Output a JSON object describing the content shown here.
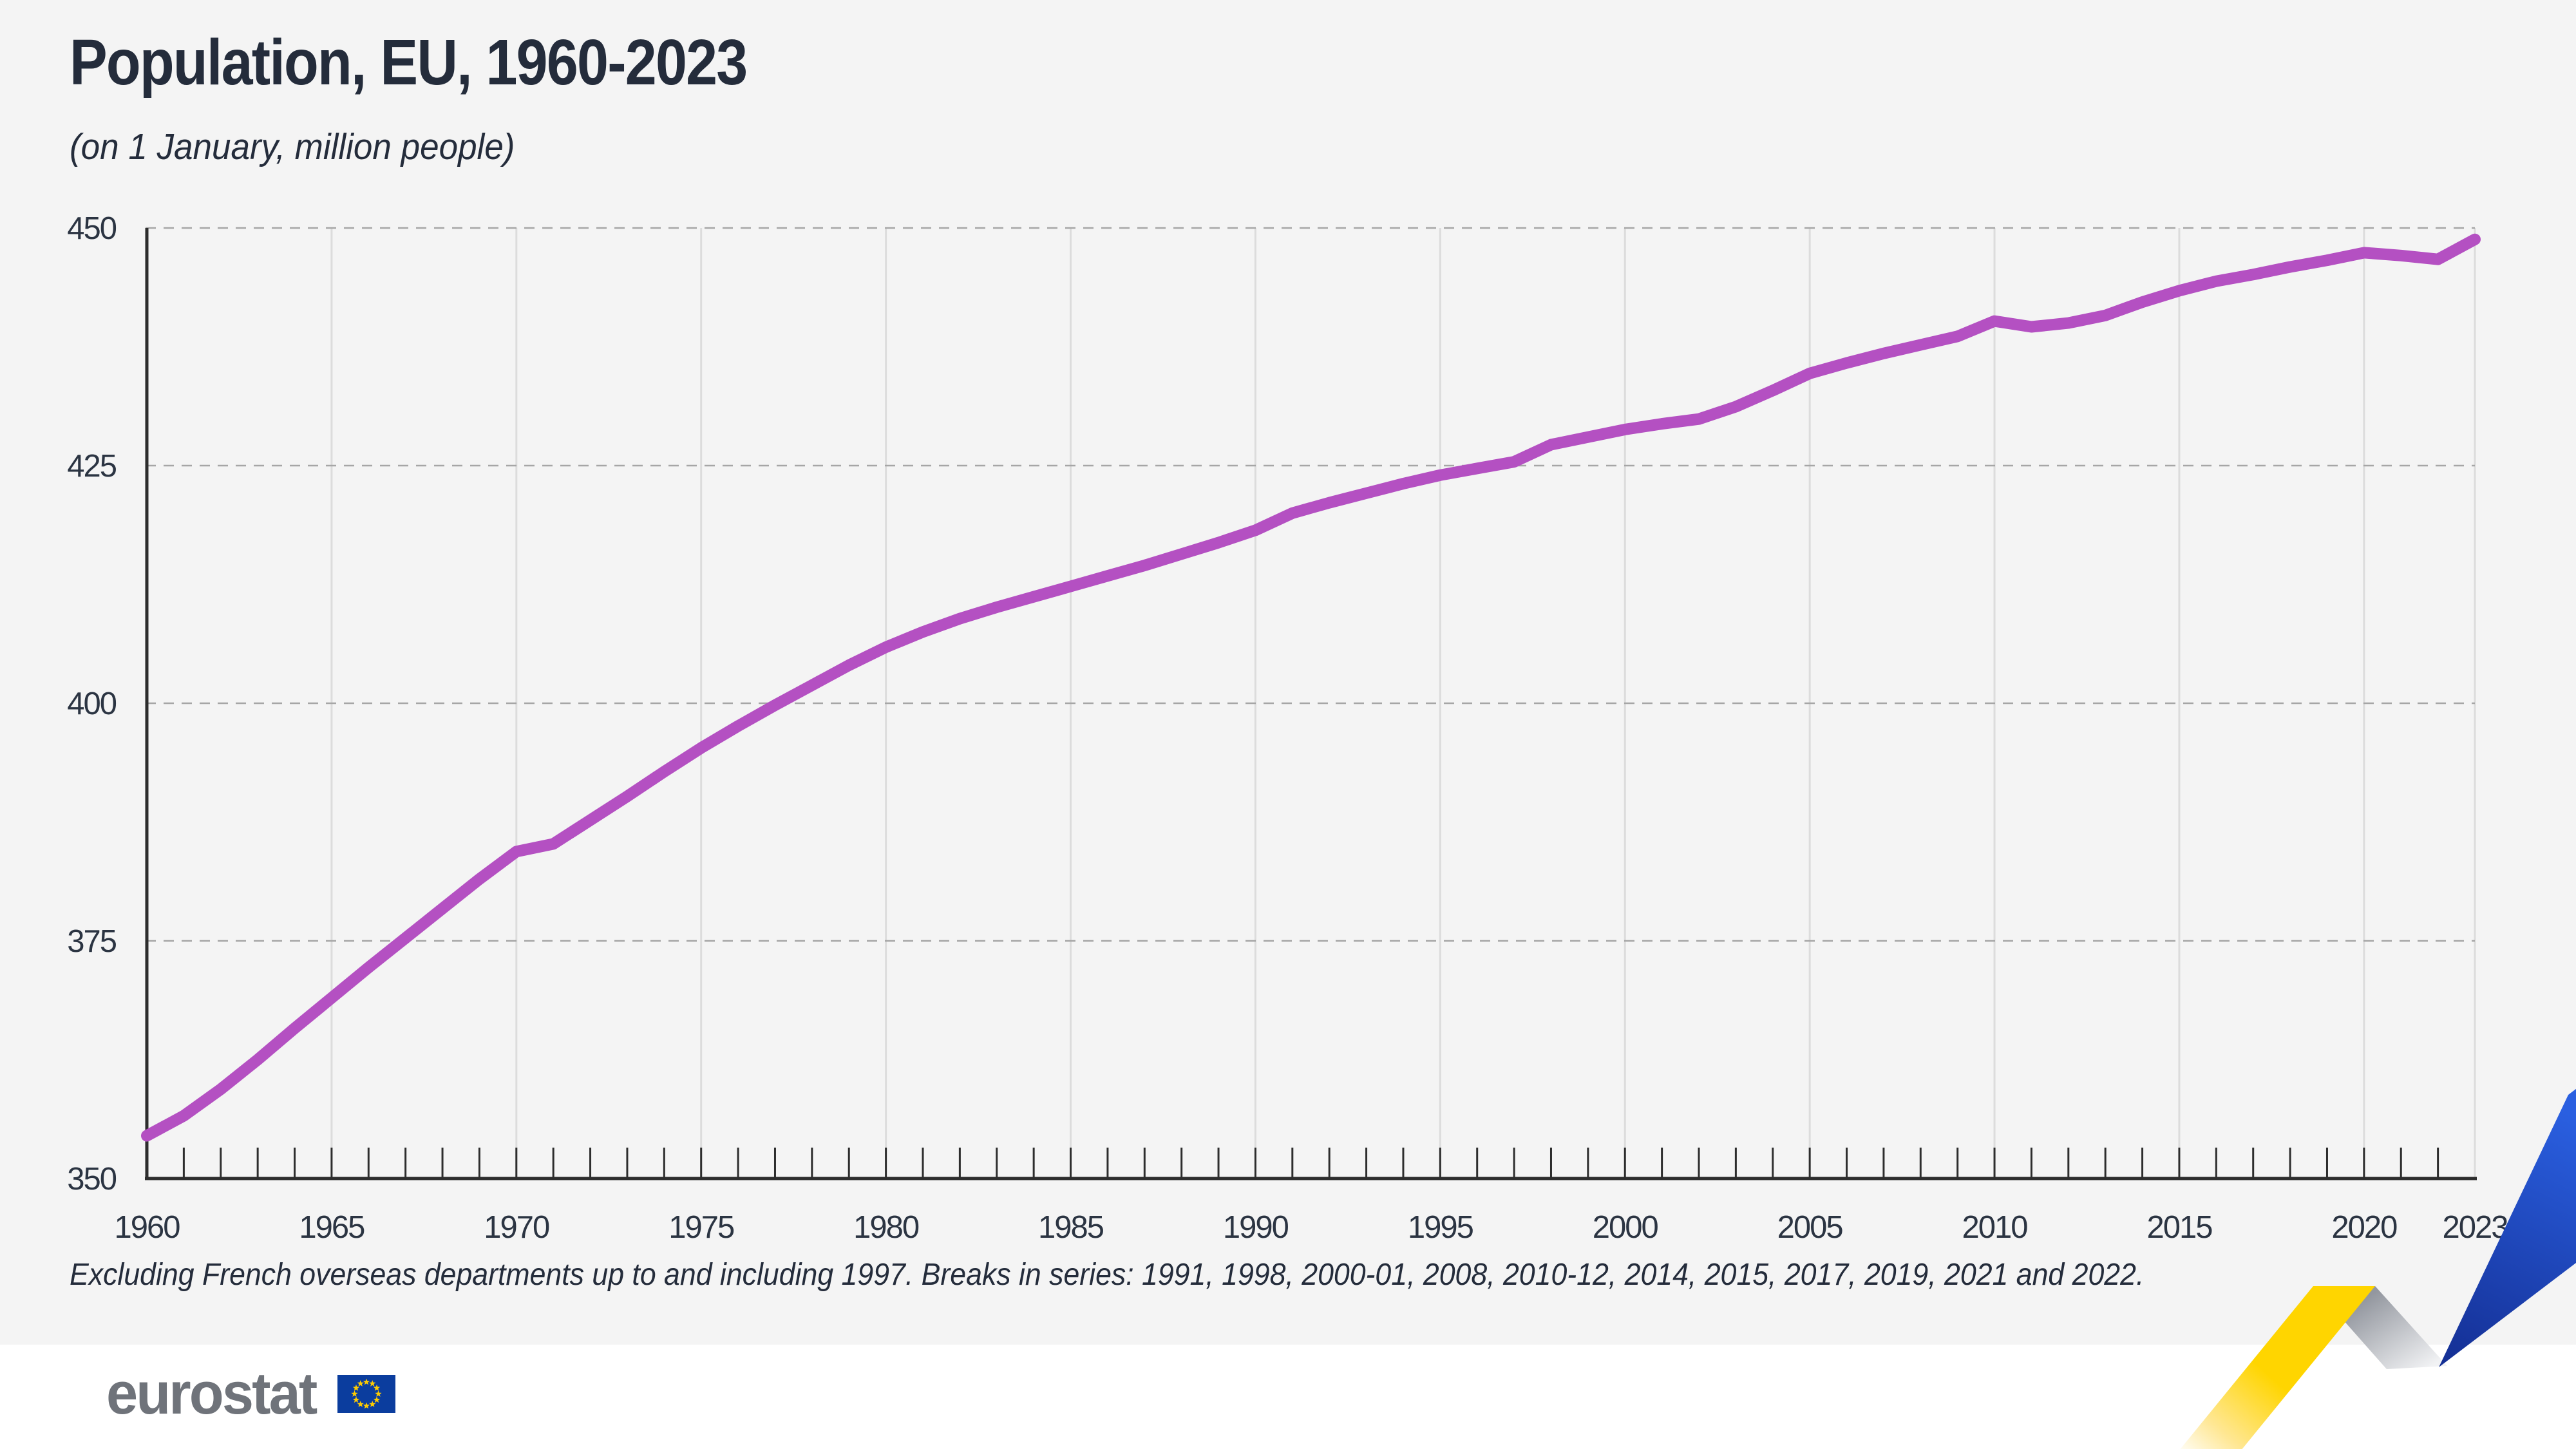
{
  "header": {
    "title": "Population, EU, 1960-2023",
    "subtitle": "(on 1 January, million people)"
  },
  "chart_data": {
    "type": "line",
    "title": "Population, EU, 1960-2023",
    "subtitle": "(on 1 January, million people)",
    "unit": "million people",
    "xlabel": "",
    "ylabel": "",
    "ylim": [
      350,
      450
    ],
    "y_ticks": [
      350,
      375,
      400,
      425,
      450
    ],
    "x_range": [
      1960,
      2023
    ],
    "x_tick_labels": [
      "1960",
      "1965",
      "1970",
      "1975",
      "1980",
      "1985",
      "1990",
      "1995",
      "2000",
      "2005",
      "2010",
      "2015",
      "2020",
      "2023"
    ],
    "vertical_gridline_years": [
      1965,
      1970,
      1975,
      1980,
      1985,
      1990,
      1995,
      2000,
      2005,
      2010,
      2015,
      2020,
      2023
    ],
    "grid": "horizontal dashed gray lines at 375/400/425/450; light vertical solid lines at labeled years; small year tick marks on baseline",
    "legend": "none",
    "line_color": "#b450c2",
    "series": [
      {
        "name": "EU population on 1 January (million)",
        "x": [
          1960,
          1961,
          1962,
          1963,
          1964,
          1965,
          1966,
          1967,
          1968,
          1969,
          1970,
          1971,
          1972,
          1973,
          1974,
          1975,
          1976,
          1977,
          1978,
          1979,
          1980,
          1981,
          1982,
          1983,
          1984,
          1985,
          1986,
          1987,
          1988,
          1989,
          1990,
          1991,
          1992,
          1993,
          1994,
          1995,
          1996,
          1997,
          1998,
          1999,
          2000,
          2001,
          2002,
          2003,
          2004,
          2005,
          2006,
          2007,
          2008,
          2009,
          2010,
          2011,
          2012,
          2013,
          2014,
          2015,
          2016,
          2017,
          2018,
          2019,
          2020,
          2021,
          2022,
          2023
        ],
        "values": [
          354.5,
          356.6,
          359.4,
          362.5,
          365.8,
          369.0,
          372.2,
          375.3,
          378.4,
          381.5,
          384.4,
          385.2,
          387.7,
          390.2,
          392.8,
          395.3,
          397.6,
          399.8,
          401.9,
          404.0,
          405.9,
          407.5,
          408.9,
          410.1,
          411.2,
          412.3,
          413.4,
          414.5,
          415.7,
          416.9,
          418.2,
          420.0,
          421.1,
          422.1,
          423.1,
          424.0,
          424.7,
          425.4,
          427.2,
          428.0,
          428.8,
          429.4,
          429.9,
          431.2,
          432.9,
          434.7,
          435.8,
          436.8,
          437.7,
          438.6,
          440.2,
          439.6,
          440.0,
          440.8,
          442.2,
          443.4,
          444.4,
          445.1,
          445.9,
          446.6,
          447.4,
          447.1,
          446.7,
          448.8
        ]
      }
    ]
  },
  "footnote": {
    "text": "Excluding French overseas departments up to and including 1997. Breaks in series: 1991, 1998, 2000-01, 2008, 2010-12, 2014, 2015, 2017, 2019, 2021 and 2022."
  },
  "logo": {
    "text": "eurostat",
    "text_color": "#6f737a",
    "flag_blue": "#0b3d9e",
    "star_yellow": "#ffcc00"
  },
  "colors": {
    "background": "#f4f4f4",
    "footer_background": "#ffffff",
    "text": "#242c3b",
    "axis": "#2d2d2d",
    "gridline_dashed": "#a6a6a6",
    "gridline_vertical": "#dcdcdc",
    "line": "#b450c2",
    "ribbon_yellow": "#ffd500",
    "ribbon_blue_light": "#2a5fe0",
    "ribbon_blue_dark": "#142f94",
    "ribbon_gray": "#93979f"
  }
}
